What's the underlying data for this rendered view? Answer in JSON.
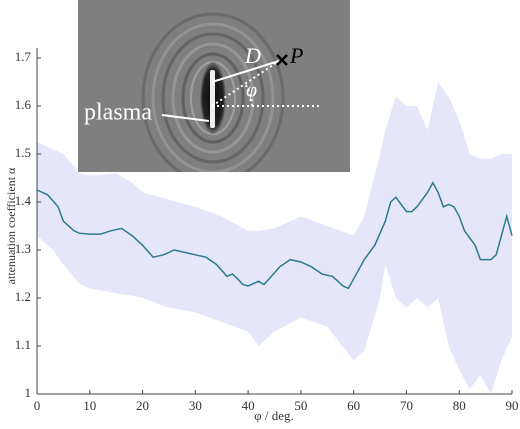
{
  "chart_data": {
    "type": "line",
    "xlabel": "φ / deg.",
    "ylabel": "attenuation coefficient α",
    "xlim": [
      0,
      90
    ],
    "ylim": [
      1,
      1.7
    ],
    "xticks": [
      0,
      10,
      20,
      30,
      40,
      50,
      60,
      70,
      80,
      90
    ],
    "yticks": [
      1,
      1.1,
      1.2,
      1.3,
      1.4,
      1.5,
      1.6,
      1.7
    ],
    "color": "#2a7a8a",
    "x": [
      0,
      2,
      4,
      5,
      7,
      8,
      10,
      12,
      14,
      16,
      18,
      20,
      22,
      24,
      26,
      28,
      30,
      32,
      34,
      36,
      37,
      38,
      39,
      40,
      41,
      42,
      43,
      44,
      46,
      48,
      50,
      52,
      54,
      56,
      58,
      59,
      60,
      62,
      64,
      66,
      67,
      68,
      69,
      70,
      71,
      72,
      73,
      74,
      75,
      76,
      77,
      78,
      79,
      80,
      81,
      82,
      83,
      84,
      85,
      86,
      87,
      88,
      89,
      90
    ],
    "values": [
      1.425,
      1.415,
      1.39,
      1.36,
      1.34,
      1.335,
      1.333,
      1.333,
      1.34,
      1.345,
      1.33,
      1.31,
      1.285,
      1.29,
      1.3,
      1.295,
      1.29,
      1.285,
      1.27,
      1.245,
      1.25,
      1.24,
      1.228,
      1.225,
      1.23,
      1.235,
      1.228,
      1.24,
      1.265,
      1.28,
      1.275,
      1.265,
      1.25,
      1.245,
      1.225,
      1.22,
      1.24,
      1.28,
      1.31,
      1.36,
      1.4,
      1.41,
      1.395,
      1.38,
      1.38,
      1.39,
      1.405,
      1.42,
      1.44,
      1.42,
      1.39,
      1.395,
      1.39,
      1.37,
      1.34,
      1.325,
      1.31,
      1.28,
      1.28,
      1.28,
      1.29,
      1.33,
      1.37,
      1.33
    ],
    "band": {
      "color": "#e6e6fb",
      "x": [
        0,
        3,
        5,
        8,
        10,
        15,
        18,
        20,
        25,
        30,
        35,
        40,
        42,
        45,
        50,
        55,
        60,
        62,
        65,
        66,
        68,
        70,
        72,
        74,
        76,
        78,
        80,
        82,
        84,
        86,
        88,
        90
      ],
      "upper": [
        1.525,
        1.51,
        1.5,
        1.46,
        1.455,
        1.46,
        1.44,
        1.42,
        1.405,
        1.39,
        1.37,
        1.34,
        1.34,
        1.345,
        1.37,
        1.35,
        1.33,
        1.37,
        1.5,
        1.55,
        1.62,
        1.6,
        1.6,
        1.55,
        1.65,
        1.62,
        1.57,
        1.5,
        1.49,
        1.49,
        1.5,
        1.5
      ],
      "lower": [
        1.33,
        1.3,
        1.27,
        1.23,
        1.22,
        1.21,
        1.205,
        1.2,
        1.18,
        1.17,
        1.15,
        1.13,
        1.1,
        1.13,
        1.16,
        1.14,
        1.07,
        1.09,
        1.2,
        1.27,
        1.2,
        1.18,
        1.2,
        1.18,
        1.2,
        1.1,
        1.05,
        1.01,
        1.04,
        1.0,
        1.07,
        1.12
      ]
    },
    "inset": {
      "distance_label": "D",
      "point_label": "P",
      "angle_label": "φ",
      "source_label": "plasma"
    }
  }
}
